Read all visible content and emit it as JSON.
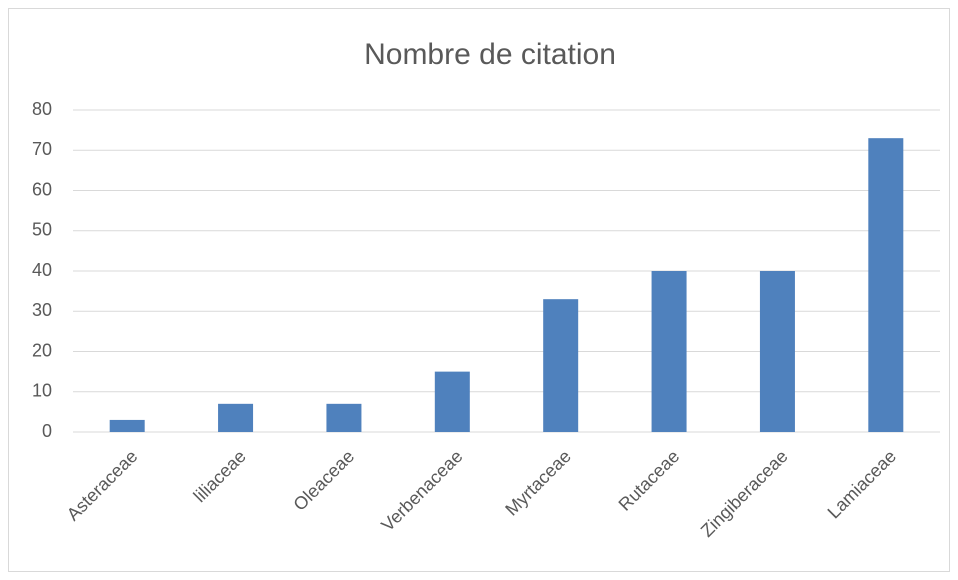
{
  "chart_data": {
    "type": "bar",
    "title": "Nombre de citation",
    "categories": [
      "Asteraceae",
      "liliaceae",
      "Oleaceae",
      "Verbenaceae",
      "Myrtaceae",
      "Rutaceae",
      "Zingiberaceae",
      "Lamiaceae"
    ],
    "values": [
      3,
      7,
      7,
      15,
      33,
      40,
      40,
      73
    ],
    "color": "#4f81bd",
    "ylim": [
      0,
      80
    ],
    "yticks": [
      0,
      10,
      20,
      30,
      40,
      50,
      60,
      70,
      80
    ],
    "grid": true
  }
}
